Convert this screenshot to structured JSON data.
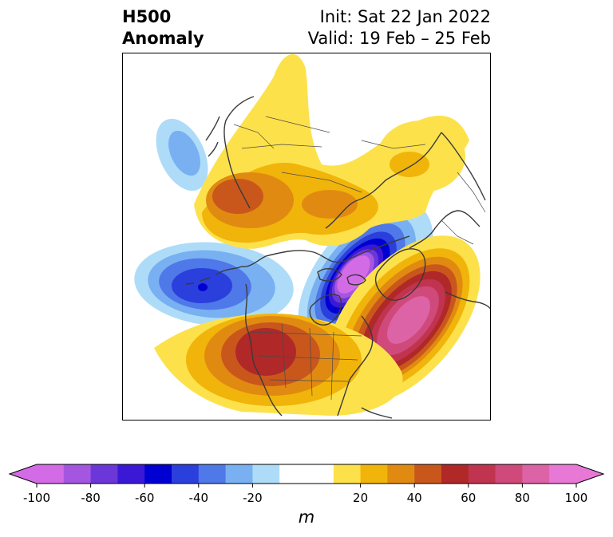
{
  "header": {
    "title_line1": "H500",
    "title_line2": "Anomaly",
    "init_label": "Init: Sat 22 Jan 2022",
    "valid_label": "Valid: 19 Feb – 25 Feb"
  },
  "colorbar": {
    "unit": "m",
    "ticks": [
      "-100",
      "-80",
      "-60",
      "-40",
      "-20",
      "20",
      "40",
      "60",
      "80",
      "100"
    ],
    "tick_values": [
      -100,
      -80,
      -60,
      -40,
      -20,
      20,
      40,
      60,
      80,
      100
    ],
    "range": [
      -100,
      100
    ],
    "bins": [
      {
        "from": -100,
        "to": -90,
        "color": "#d46be6"
      },
      {
        "from": -90,
        "to": -80,
        "color": "#a556e0"
      },
      {
        "from": -80,
        "to": -70,
        "color": "#6c37d9"
      },
      {
        "from": -70,
        "to": -60,
        "color": "#3a18d6"
      },
      {
        "from": -60,
        "to": -50,
        "color": "#0000d2"
      },
      {
        "from": -50,
        "to": -40,
        "color": "#2a3fdb"
      },
      {
        "from": -40,
        "to": -30,
        "color": "#4f78e8"
      },
      {
        "from": -30,
        "to": -20,
        "color": "#78b0f2"
      },
      {
        "from": -20,
        "to": -10,
        "color": "#aedcf8"
      },
      {
        "from": -10,
        "to": 10,
        "color": "#ffffff"
      },
      {
        "from": 10,
        "to": 20,
        "color": "#fde14a"
      },
      {
        "from": 20,
        "to": 30,
        "color": "#f1b40a"
      },
      {
        "from": 30,
        "to": 40,
        "color": "#e08a12"
      },
      {
        "from": 40,
        "to": 50,
        "color": "#c9571c"
      },
      {
        "from": 50,
        "to": 60,
        "color": "#b02828"
      },
      {
        "from": 60,
        "to": 70,
        "color": "#c0344f"
      },
      {
        "from": 70,
        "to": 80,
        "color": "#cf4a7a"
      },
      {
        "from": 80,
        "to": 90,
        "color": "#dd63a7"
      },
      {
        "from": 90,
        "to": 100,
        "color": "#e878d6"
      }
    ],
    "under_color": "#d46be6",
    "over_color": "#e878d6"
  },
  "map": {
    "coastline_color": "#3a3a3a",
    "features": [
      {
        "name": "west-pacific-negative",
        "center_lonlat": [
          -205,
          45
        ],
        "anomaly": -35
      },
      {
        "name": "east-pacific-negative",
        "center_lonlat": [
          -165,
          38
        ],
        "anomaly": -58
      },
      {
        "name": "hudson-bay-negative",
        "center_lonlat": [
          -75,
          62
        ],
        "anomaly": -95
      },
      {
        "name": "southwest-us-positive",
        "center_lonlat": [
          -108,
          37
        ],
        "anomaly": 58
      },
      {
        "name": "north-atlantic-positive",
        "center_lonlat": [
          -40,
          45
        ],
        "anomaly": 88
      },
      {
        "name": "siberia-positive",
        "center_lonlat": [
          130,
          62
        ],
        "anomaly": 45
      },
      {
        "name": "europe-positive",
        "center_lonlat": [
          30,
          55
        ],
        "anomaly": 20
      }
    ]
  }
}
